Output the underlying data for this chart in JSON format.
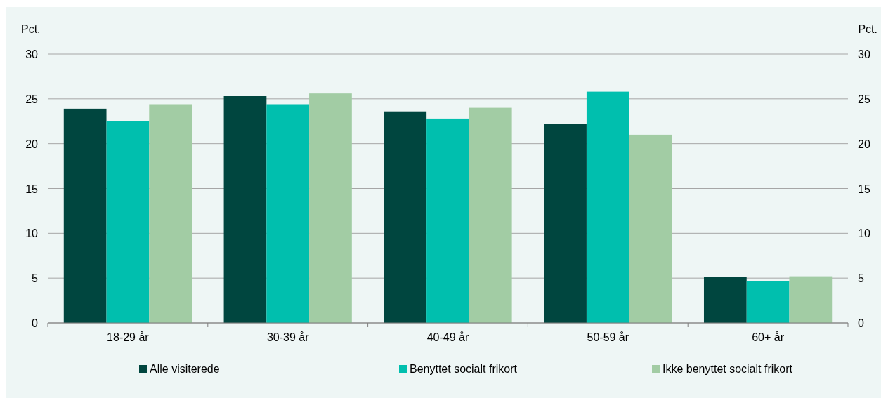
{
  "chart_data": {
    "type": "bar",
    "ylabel": "Pct.",
    "y2label": "Pct.",
    "categories": [
      "18-29 år",
      "30-39 år",
      "40-49 år",
      "50-59 år",
      "60+ år"
    ],
    "series": [
      {
        "name": "Alle visiterede",
        "color": "#00463f",
        "values": [
          23.9,
          25.3,
          23.6,
          22.2,
          5.1
        ]
      },
      {
        "name": "Benyttet socialt frikort",
        "color": "#00bfae",
        "values": [
          22.5,
          24.4,
          22.8,
          25.8,
          4.7
        ]
      },
      {
        "name": "Ikke benyttet socialt frikort",
        "color": "#a2cca4",
        "values": [
          24.4,
          25.6,
          24.0,
          21.0,
          5.2
        ]
      }
    ],
    "ylim": [
      0,
      30
    ],
    "yticks": [
      0,
      5,
      10,
      15,
      20,
      25,
      30
    ],
    "y2lim": [
      0,
      30
    ],
    "y2ticks": [
      0,
      5,
      10,
      15,
      20,
      25,
      30
    ],
    "grid": "y",
    "legend": "bottom"
  }
}
